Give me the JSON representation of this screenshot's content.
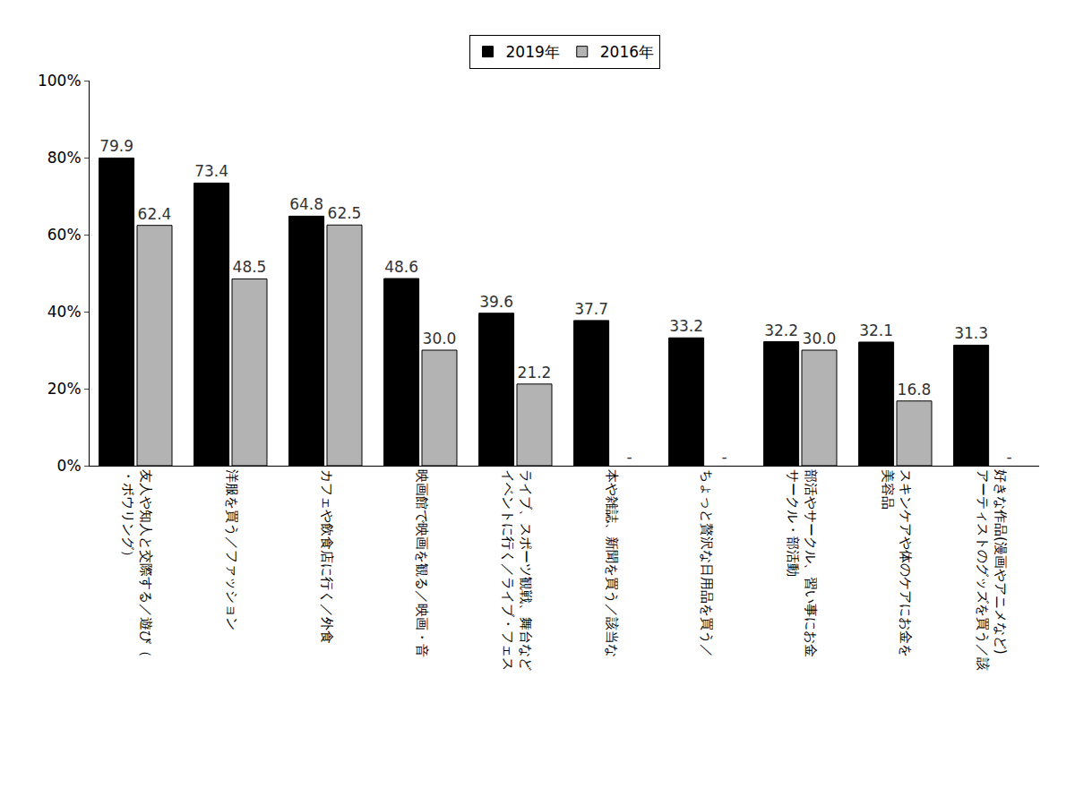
{
  "chart_data": {
    "type": "bar",
    "categories": [
      "友人や知人と交際する／遊び（\n・ボウリング）",
      "洋服を買う／ファッション",
      "カフェや飲食店に行く／外食",
      "映画館で映画を観る／映画・音",
      "ライブ、スポーツ観戦、舞台など\nイベントに行く／ライブ・フェス",
      "本や雑誌、新聞を買う／該当な",
      "ちょっと贅沢な日用品を買う／",
      "部活やサークル、習い事にお金\nサークル・部活動",
      "スキンケアや体のケアにお金を\n美容品",
      "好きな作品(漫画やアニメなど)\nアーティストのグッズを買う／該"
    ],
    "series": [
      {
        "name": "2019年",
        "color": "#000000",
        "values": [
          79.9,
          73.4,
          64.8,
          48.6,
          39.6,
          37.7,
          33.2,
          32.2,
          32.1,
          31.3
        ],
        "value_labels": [
          "79.9",
          "73.4",
          "64.8",
          "48.6",
          "39.6",
          "37.7",
          "33.2",
          "32.2",
          "32.1",
          "31.3"
        ]
      },
      {
        "name": "2016年",
        "color": "#b3b3b3",
        "values": [
          62.4,
          48.5,
          62.5,
          30.0,
          21.2,
          null,
          null,
          30.0,
          16.8,
          null
        ],
        "value_labels": [
          "62.4",
          "48.5",
          "62.5",
          "30.0",
          "21.2",
          "-",
          "-",
          "30.0",
          "16.8",
          "-"
        ]
      }
    ],
    "ylim": [
      0,
      100
    ],
    "yticks": [
      {
        "value": 0,
        "label": "0%"
      },
      {
        "value": 20,
        "label": "20%"
      },
      {
        "value": 40,
        "label": "40%"
      },
      {
        "value": 60,
        "label": "60%"
      },
      {
        "value": 80,
        "label": "80%"
      },
      {
        "value": 100,
        "label": "100%"
      }
    ],
    "grid": false,
    "legend": "top",
    "data_labels": true
  }
}
